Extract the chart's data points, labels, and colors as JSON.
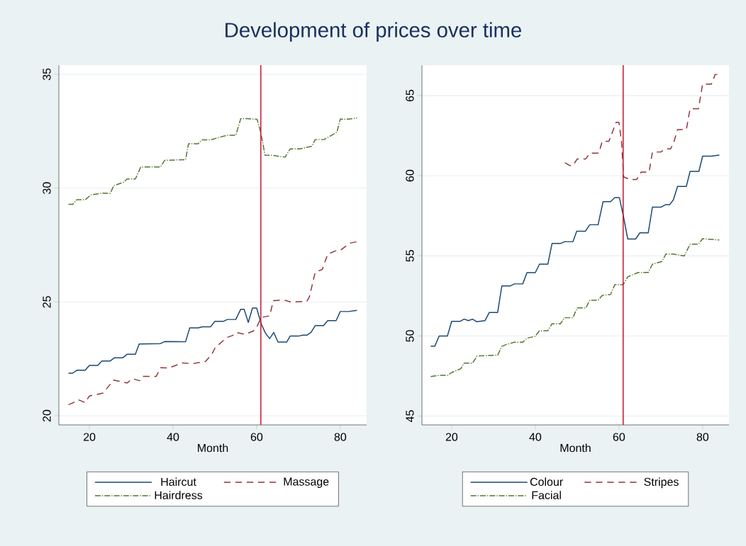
{
  "chart_data": [
    {
      "type": "line",
      "title": "Development of prices over time",
      "xlabel": "Month",
      "xlim": [
        12.7,
        86.3
      ],
      "xticks": [
        20,
        40,
        60,
        80
      ],
      "ylim": [
        19.6,
        35.4
      ],
      "yticks": [
        20,
        25,
        30,
        35
      ],
      "grid": "y",
      "legend": "bottom",
      "ref_lines": [
        {
          "axis": "x",
          "value": 61,
          "color": "#c8102e"
        }
      ],
      "series": [
        {
          "name": "Haircut",
          "color": "#1a476f",
          "line_style": "solid",
          "x": [
            15,
            16,
            17,
            19,
            20,
            22,
            23,
            25,
            26,
            28,
            29,
            31,
            31.9,
            37,
            38,
            43,
            44,
            46,
            47,
            49,
            50,
            52.1,
            53,
            55,
            56.2,
            57,
            58,
            59,
            60,
            61.1,
            62.1,
            63.1,
            64.1,
            65.1,
            67.2,
            68,
            70,
            71,
            72,
            73,
            74,
            76,
            77,
            79,
            80,
            82,
            84
          ],
          "values": [
            21.87,
            21.87,
            22.0,
            22.0,
            22.21,
            22.21,
            22.41,
            22.41,
            22.55,
            22.55,
            22.7,
            22.7,
            23.15,
            23.17,
            23.26,
            23.25,
            23.86,
            23.86,
            23.91,
            23.91,
            24.15,
            24.15,
            24.23,
            24.23,
            24.68,
            24.68,
            24.1,
            24.73,
            24.73,
            24.03,
            23.63,
            23.39,
            23.66,
            23.24,
            23.24,
            23.5,
            23.5,
            23.54,
            23.54,
            23.66,
            23.96,
            23.96,
            24.18,
            24.18,
            24.58,
            24.58,
            24.63
          ]
        },
        {
          "name": "Massage",
          "color": "#90353b",
          "line_style": "dashed",
          "x": [
            15,
            16,
            17.3,
            19,
            20,
            23.3,
            25.8,
            29,
            30.3,
            32,
            32.8,
            36,
            37,
            39,
            42.2,
            44.7,
            47.8,
            49.3,
            50.1,
            52.9,
            54.3,
            55.2,
            57.2,
            59.2,
            60,
            61.1,
            63.1,
            64,
            66.6,
            68.3,
            72,
            72.6,
            74,
            75.7,
            77,
            78.8,
            80,
            82.3,
            84
          ],
          "values": [
            20.49,
            20.56,
            20.71,
            20.58,
            20.87,
            21.0,
            21.57,
            21.44,
            21.63,
            21.54,
            21.73,
            21.73,
            22.11,
            22.1,
            22.32,
            22.29,
            22.39,
            22.71,
            23.0,
            23.44,
            23.53,
            23.66,
            23.58,
            23.72,
            23.89,
            24.32,
            24.39,
            25.06,
            25.08,
            24.99,
            25.03,
            25.22,
            26.3,
            26.43,
            27.1,
            27.24,
            27.27,
            27.58,
            27.65
          ]
        },
        {
          "name": "Hairdress",
          "color": "#55752f",
          "line_style": "dashdot",
          "x": [
            15,
            16,
            17,
            19,
            20.4,
            23,
            25,
            25.8,
            28.2,
            29,
            31,
            32.3,
            37,
            38,
            43,
            43.7,
            46,
            47,
            49,
            52.9,
            55,
            56.2,
            57.7,
            60.1,
            60.8,
            61.4,
            62,
            63.7,
            66.8,
            68,
            70.4,
            73.2,
            74,
            76.1,
            79.2,
            80,
            82,
            84
          ],
          "values": [
            29.29,
            29.29,
            29.49,
            29.49,
            29.7,
            29.78,
            29.77,
            30.1,
            30.26,
            30.4,
            30.4,
            30.93,
            30.93,
            31.22,
            31.25,
            31.95,
            31.95,
            32.12,
            32.12,
            32.32,
            32.32,
            33.05,
            33.05,
            33.02,
            32.57,
            32.05,
            31.45,
            31.44,
            31.36,
            31.72,
            31.72,
            31.84,
            32.13,
            32.13,
            32.46,
            33.03,
            33.03,
            33.08
          ]
        }
      ]
    },
    {
      "type": "line",
      "xlabel": "Month",
      "xlim": [
        12.9,
        86.3
      ],
      "xticks": [
        20,
        40,
        60,
        80
      ],
      "ylim": [
        44.45,
        66.9
      ],
      "yticks": [
        45,
        50,
        55,
        60,
        65
      ],
      "grid": "y",
      "legend": "bottom",
      "ref_lines": [
        {
          "axis": "x",
          "value": 61,
          "color": "#c8102e"
        }
      ],
      "series": [
        {
          "name": "Colour",
          "color": "#1a476f",
          "line_style": "solid",
          "x": [
            15,
            16,
            17,
            19,
            20,
            22,
            23,
            24,
            25,
            26,
            28,
            29,
            31,
            32,
            34,
            35,
            37,
            38,
            40,
            41,
            43,
            44,
            46,
            47,
            49,
            49.9,
            52,
            53,
            55,
            56.2,
            58,
            59,
            60.1,
            61.1,
            62.1,
            64,
            65,
            67,
            68,
            70.1,
            71.1,
            72.1,
            73,
            74,
            76.1,
            77,
            79.1,
            80,
            82.1,
            84
          ],
          "values": [
            49.37,
            49.37,
            50.0,
            50.0,
            50.91,
            50.91,
            51.05,
            50.96,
            51.05,
            50.89,
            50.96,
            51.47,
            51.47,
            53.12,
            53.12,
            53.25,
            53.25,
            53.95,
            53.95,
            54.48,
            54.48,
            55.77,
            55.77,
            55.88,
            55.88,
            56.54,
            56.54,
            56.94,
            56.94,
            58.38,
            58.38,
            58.64,
            58.64,
            57.42,
            56.05,
            56.05,
            56.44,
            56.44,
            58.04,
            58.04,
            58.19,
            58.19,
            58.49,
            59.33,
            59.33,
            60.27,
            60.27,
            61.22,
            61.22,
            61.29
          ]
        },
        {
          "name": "Stripes",
          "color": "#90353b",
          "line_style": "dashed",
          "x": [
            47.1,
            48.2,
            49,
            50,
            52,
            53.1,
            55.2,
            56,
            57.6,
            59.3,
            60,
            60.6,
            61.1,
            62.7,
            64.2,
            65.3,
            67.2,
            68,
            70,
            71.1,
            72.3,
            73,
            74,
            76.1,
            77,
            79,
            80,
            82.1,
            83,
            84
          ],
          "values": [
            60.81,
            60.64,
            60.64,
            61.04,
            61.04,
            61.41,
            61.41,
            62.15,
            62.15,
            63.33,
            63.33,
            62.15,
            59.93,
            59.76,
            59.76,
            60.23,
            60.23,
            61.48,
            61.48,
            61.67,
            61.67,
            62.0,
            62.88,
            62.88,
            64.18,
            64.18,
            65.72,
            65.72,
            66.32,
            66.32
          ]
        },
        {
          "name": "Facial",
          "color": "#55752f",
          "line_style": "dashdot",
          "x": [
            15,
            17,
            19,
            20,
            22.2,
            23,
            25,
            26.1,
            31,
            32,
            33,
            35,
            37,
            38,
            40,
            41,
            43,
            44,
            46,
            47,
            49,
            50,
            52.1,
            53,
            55,
            56,
            58,
            59,
            61,
            62.1,
            64.6,
            67,
            68,
            70.3,
            71.2,
            73,
            75.6,
            77,
            79,
            80,
            84
          ],
          "values": [
            47.47,
            47.54,
            47.54,
            47.72,
            47.96,
            48.31,
            48.31,
            48.75,
            48.8,
            49.35,
            49.46,
            49.61,
            49.61,
            49.86,
            49.98,
            50.33,
            50.33,
            50.76,
            50.76,
            51.14,
            51.14,
            51.75,
            51.75,
            52.23,
            52.23,
            52.53,
            52.59,
            53.2,
            53.2,
            53.69,
            53.96,
            53.96,
            54.48,
            54.65,
            55.11,
            55.11,
            54.99,
            55.73,
            55.73,
            56.07,
            55.99
          ]
        }
      ]
    }
  ]
}
